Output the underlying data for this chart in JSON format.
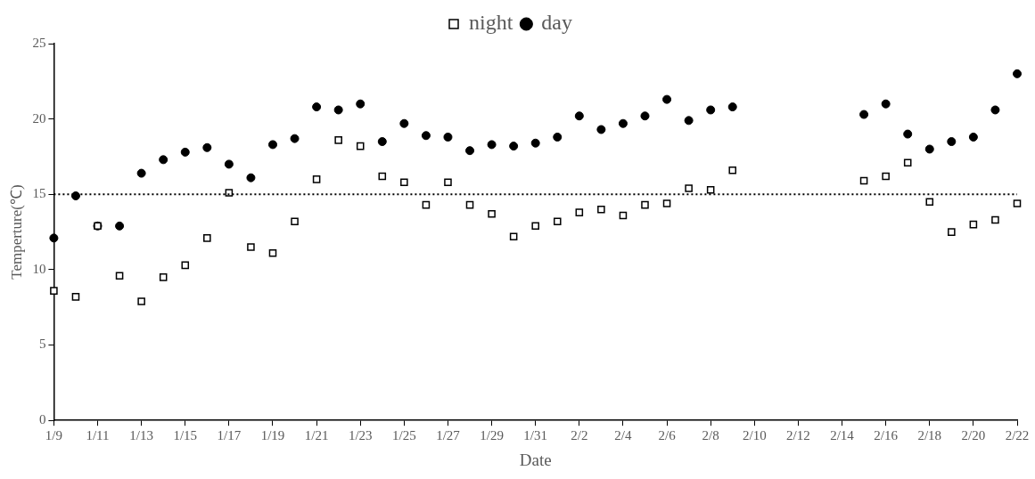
{
  "chart_data": {
    "type": "scatter",
    "xlabel": "Date",
    "ylabel": "Temperture(℃)",
    "categories": [
      "1/9",
      null,
      "1/11",
      null,
      "1/13",
      null,
      "1/15",
      null,
      "1/17",
      null,
      "1/19",
      null,
      "1/21",
      null,
      "1/23",
      null,
      "1/25",
      null,
      "1/27",
      null,
      "1/29",
      null,
      "1/31",
      null,
      "2/2",
      null,
      "2/4",
      null,
      "2/6",
      null,
      "2/8",
      null,
      "2/10",
      null,
      "2/12",
      null,
      "2/14",
      null,
      "2/16",
      null,
      "2/18",
      null,
      "2/20",
      null,
      "2/22"
    ],
    "series": [
      {
        "name": "night",
        "color": "#000000",
        "marker": "square",
        "values": [
          8.6,
          8.2,
          12.9,
          9.6,
          7.9,
          9.5,
          10.3,
          12.1,
          15.1,
          11.5,
          11.1,
          13.2,
          16.0,
          18.6,
          18.2,
          16.2,
          15.8,
          14.3,
          15.8,
          14.3,
          13.7,
          12.2,
          12.9,
          13.2,
          13.8,
          14.0,
          13.6,
          14.3,
          14.4,
          15.4,
          15.3,
          16.6,
          null,
          null,
          null,
          null,
          null,
          15.9,
          16.2,
          17.1,
          14.5,
          12.5,
          13.0,
          13.3,
          14.4
        ]
      },
      {
        "name": "day",
        "color": "#000000",
        "marker": "circle",
        "values": [
          12.1,
          14.9,
          12.9,
          12.9,
          16.4,
          17.3,
          17.8,
          18.1,
          17.0,
          16.1,
          18.3,
          18.7,
          20.8,
          20.6,
          21.0,
          18.5,
          19.7,
          18.9,
          18.8,
          17.9,
          18.3,
          18.2,
          18.4,
          18.8,
          20.2,
          19.3,
          19.7,
          20.2,
          21.3,
          19.9,
          20.6,
          20.8,
          null,
          null,
          null,
          null,
          null,
          20.3,
          21.0,
          19.0,
          18.0,
          18.5,
          18.8,
          20.6,
          23.0
        ]
      }
    ],
    "ylim": [
      0,
      25
    ],
    "yticks": [
      0,
      5,
      10,
      15,
      20,
      25
    ],
    "ref_lines": [
      {
        "axis": "y",
        "value": 15,
        "line_style": "dotted",
        "color": "#000000"
      }
    ],
    "legend": "top",
    "grid": false
  }
}
